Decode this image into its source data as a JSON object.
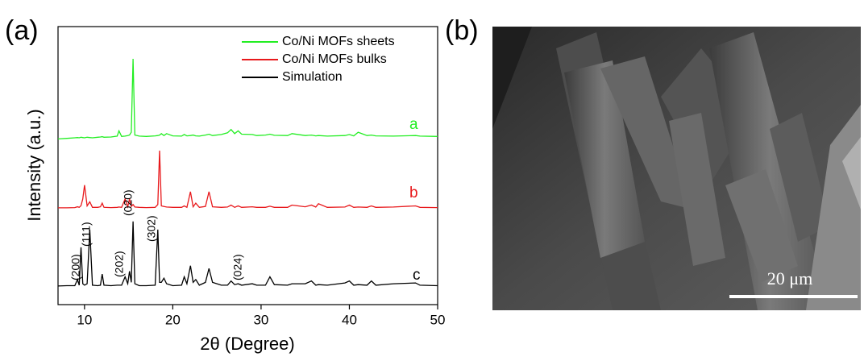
{
  "panel_labels": [
    "(a)",
    "(b)"
  ],
  "image": {
    "scale_bar": "20 μm"
  },
  "chart_data": {
    "type": "line",
    "xlabel": "2θ (Degree)",
    "ylabel": "Intensity (a.u.)",
    "xlim": [
      7,
      50
    ],
    "xticks": [
      10,
      20,
      30,
      40,
      50
    ],
    "ylim": [
      0,
      100
    ],
    "legend": "upper right",
    "annotations": [
      "a",
      "b",
      "c",
      "(200)",
      "(111)",
      "(202)",
      "(020)",
      "(302)",
      "(024)"
    ],
    "x": [
      7,
      8,
      8.9,
      9.2,
      9.4,
      9.6,
      9.8,
      10.0,
      10.3,
      10.6,
      10.9,
      11.5,
      11.8,
      12.0,
      12.2,
      13.0,
      13.7,
      13.9,
      14.2,
      14.6,
      14.9,
      15.1,
      15.3,
      15.5,
      15.7,
      16.2,
      17.0,
      18.0,
      18.3,
      18.5,
      18.7,
      19.0,
      19.3,
      20.0,
      21.0,
      21.3,
      21.6,
      22.0,
      22.3,
      22.6,
      23.0,
      23.7,
      24.1,
      24.5,
      25.5,
      26.2,
      26.6,
      27.0,
      27.4,
      27.8,
      29.0,
      29.5,
      30.5,
      31.0,
      31.5,
      33.0,
      33.5,
      35.0,
      35.7,
      36.2,
      36.5,
      37.5,
      39.5,
      40.0,
      40.5,
      41.0,
      42.0,
      42.5,
      43.0,
      45.0,
      47.5,
      48.0,
      50
    ],
    "series": [
      {
        "name": "Co/Ni MOFs sheets",
        "color": "#22ee22",
        "values": [
          59.6,
          59.8,
          60.0,
          60.1,
          60.0,
          60.2,
          60.1,
          60.0,
          60.2,
          60.1,
          60.0,
          60.2,
          60.3,
          60.4,
          60.2,
          60.3,
          60.6,
          62.5,
          60.5,
          60.6,
          60.8,
          61.0,
          62.0,
          88.4,
          61.0,
          60.6,
          60.5,
          60.7,
          60.8,
          61.0,
          61.5,
          60.8,
          61.5,
          60.7,
          60.6,
          61.2,
          60.7,
          60.8,
          61.0,
          60.7,
          60.6,
          61.0,
          61.3,
          60.8,
          61.2,
          61.8,
          63.0,
          61.5,
          62.5,
          61.3,
          61.2,
          60.8,
          61.0,
          61.3,
          60.9,
          60.8,
          61.5,
          60.8,
          61.0,
          60.7,
          60.8,
          60.6,
          60.8,
          61.2,
          60.7,
          62.0,
          60.8,
          61.0,
          60.7,
          60.6,
          60.8,
          60.6,
          60.5
        ]
      },
      {
        "name": "Co/Ni MOFs bulks",
        "color": "#e8191c",
        "values": [
          34.8,
          34.8,
          34.9,
          35.2,
          35.0,
          35.6,
          38.0,
          43.0,
          35.5,
          37.0,
          35.0,
          35.0,
          35.2,
          36.5,
          35.0,
          34.9,
          35.0,
          35.1,
          35.0,
          38.0,
          35.2,
          38.0,
          35.3,
          36.0,
          35.1,
          35.0,
          34.9,
          35.0,
          36.0,
          55.4,
          35.5,
          35.3,
          35.1,
          35.0,
          35.0,
          35.5,
          35.0,
          40.6,
          35.2,
          36.5,
          35.0,
          35.3,
          40.6,
          35.2,
          35.0,
          35.1,
          35.8,
          35.0,
          35.5,
          35.0,
          35.2,
          35.0,
          35.0,
          35.4,
          35.0,
          35.0,
          35.8,
          35.2,
          35.8,
          35.1,
          36.3,
          35.0,
          35.1,
          35.8,
          35.0,
          35.1,
          35.0,
          35.5,
          35.0,
          35.1,
          35.5,
          35.0,
          34.9
        ]
      },
      {
        "name": "Simulation",
        "color": "#000000",
        "values": [
          6.7,
          6.8,
          6.8,
          9.0,
          7.0,
          20.6,
          7.5,
          7.0,
          7.5,
          27.0,
          7.0,
          6.8,
          7.0,
          11.0,
          7.0,
          6.8,
          7.0,
          7.0,
          7.0,
          10.0,
          7.5,
          12.0,
          8.0,
          29.9,
          7.5,
          6.8,
          6.8,
          7.0,
          27.0,
          8.0,
          8.0,
          9.5,
          7.5,
          6.8,
          7.0,
          10.0,
          7.5,
          14.0,
          8.0,
          9.0,
          7.0,
          8.0,
          13.0,
          8.0,
          7.0,
          7.0,
          8.5,
          7.2,
          7.5,
          7.0,
          7.5,
          7.0,
          7.0,
          10.0,
          7.2,
          7.0,
          7.5,
          7.5,
          8.5,
          7.0,
          7.2,
          7.0,
          7.8,
          8.5,
          7.0,
          7.2,
          7.0,
          8.5,
          7.0,
          7.5,
          7.8,
          7.0,
          6.8
        ]
      }
    ]
  }
}
